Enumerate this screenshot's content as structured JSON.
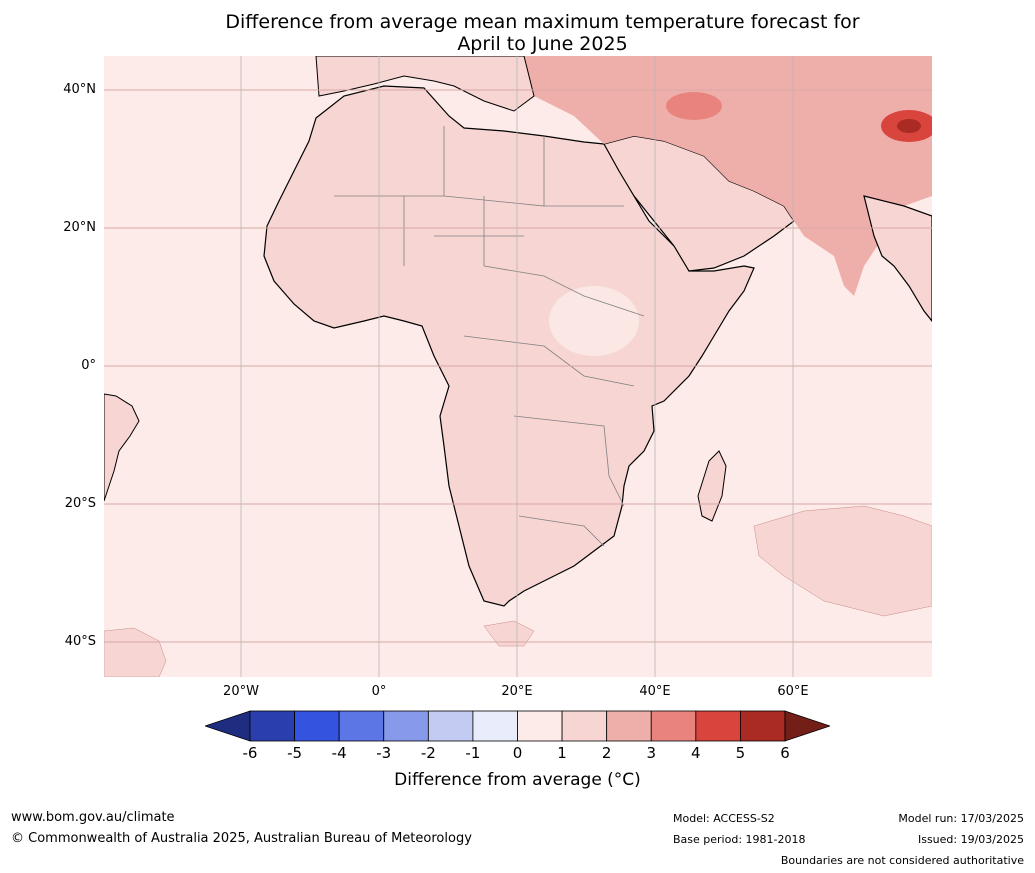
{
  "title": {
    "line1": "Difference from average mean maximum temperature forecast for",
    "line2": "April to June 2025"
  },
  "lat_labels": [
    "40°N",
    "20°N",
    "0°",
    "20°S",
    "40°S"
  ],
  "lon_labels": [
    "20°W",
    "0°",
    "20°E",
    "40°E",
    "60°E"
  ],
  "colorbar": {
    "ticks": [
      "-6",
      "-5",
      "-4",
      "-3",
      "-2",
      "-1",
      "0",
      "1",
      "2",
      "3",
      "4",
      "5",
      "6"
    ],
    "label": "Difference from average (°C)",
    "colors": [
      "#1f2d80",
      "#2a3fad",
      "#3454e0",
      "#5c76e5",
      "#8799ea",
      "#c3cbf2",
      "#e9ecfb",
      "#fcebe8",
      "#f6d5d2",
      "#eeaeaa",
      "#e8847d",
      "#d9443d",
      "#a92b24",
      "#741e18"
    ]
  },
  "footer": {
    "website": "www.bom.gov.au/climate",
    "copyright": "© Commonwealth of Australia 2025, Australian Bureau of Meteorology",
    "model": "Model: ACCESS-S2",
    "base_period": "Base period: 1981-2018",
    "model_run": "Model run: 17/03/2025",
    "issued": "Issued: 19/03/2025",
    "disclaimer": "Boundaries are not considered authoritative"
  }
}
